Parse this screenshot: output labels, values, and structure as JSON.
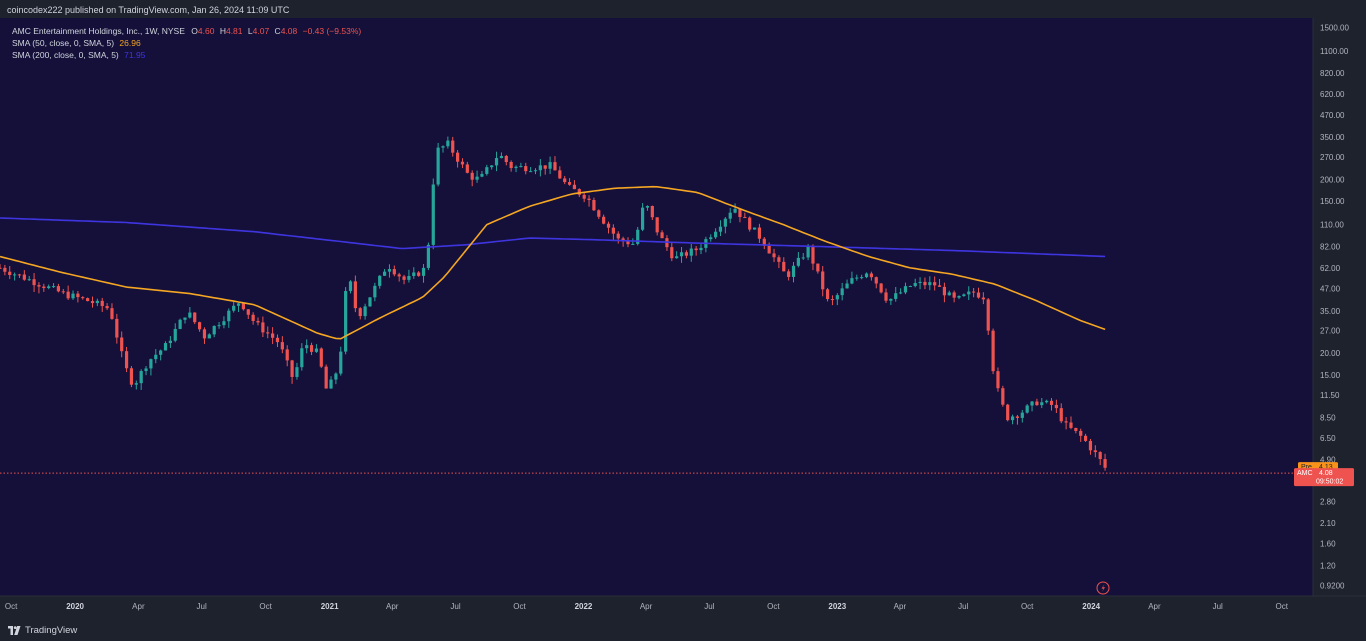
{
  "publisher": {
    "text": "coincodex222 published on TradingView.com, Jan 26, 2024 11:09 UTC"
  },
  "legend": {
    "symbol_title": "AMC Entertainment Holdings, Inc., 1W, NYSE",
    "o_label": "O",
    "o_value": "4.60",
    "h_label": "H",
    "h_value": "4.81",
    "l_label": "L",
    "l_value": "4.07",
    "c_label": "C",
    "c_value": "4.08",
    "change": "−0.43 (−9.53%)",
    "sma50_label": "SMA (50, close, 0, SMA, 5)",
    "sma50_value": "26.96",
    "sma200_label": "SMA (200, close, 0, SMA, 5)",
    "sma200_value": "71.95"
  },
  "footer": {
    "brand": "TradingView"
  },
  "colors": {
    "background": "#14103a",
    "axis_bg": "#1e222d",
    "up": "#26a69a",
    "down": "#ef5350",
    "sma50": "#f5a623",
    "sma200": "#3f35e0",
    "pre_badge": "#f7931a",
    "price_badge": "#ef5350"
  },
  "chart_data": {
    "type": "candlestick",
    "interval": "1W",
    "scale": "log",
    "ylim": [
      0.8,
      1700
    ],
    "x_range": [
      "2019-09-15",
      "2024-11-15"
    ],
    "y_ticks": [
      "1500.00",
      "1100.00",
      "820.00",
      "620.00",
      "470.00",
      "350.00",
      "270.00",
      "200.00",
      "150.00",
      "110.00",
      "82.00",
      "62.00",
      "47.00",
      "35.00",
      "27.00",
      "20.00",
      "15.00",
      "11.50",
      "8.50",
      "6.50",
      "4.90",
      "3.70",
      "2.80",
      "2.10",
      "1.60",
      "1.20",
      "0.9200"
    ],
    "x_ticks": [
      {
        "label": "Oct",
        "date": "2019-10-01"
      },
      {
        "label": "2020",
        "date": "2020-01-01"
      },
      {
        "label": "Apr",
        "date": "2020-04-01"
      },
      {
        "label": "Jul",
        "date": "2020-07-01"
      },
      {
        "label": "Oct",
        "date": "2020-10-01"
      },
      {
        "label": "2021",
        "date": "2021-01-01"
      },
      {
        "label": "Apr",
        "date": "2021-04-01"
      },
      {
        "label": "Jul",
        "date": "2021-07-01"
      },
      {
        "label": "Oct",
        "date": "2021-10-01"
      },
      {
        "label": "2022",
        "date": "2022-01-01"
      },
      {
        "label": "Apr",
        "date": "2022-04-01"
      },
      {
        "label": "Jul",
        "date": "2022-07-01"
      },
      {
        "label": "Oct",
        "date": "2022-10-01"
      },
      {
        "label": "2023",
        "date": "2023-01-01"
      },
      {
        "label": "Apr",
        "date": "2023-04-01"
      },
      {
        "label": "Jul",
        "date": "2023-07-01"
      },
      {
        "label": "Oct",
        "date": "2023-10-01"
      },
      {
        "label": "2024",
        "date": "2024-01-01"
      },
      {
        "label": "Apr",
        "date": "2024-04-01"
      },
      {
        "label": "Jul",
        "date": "2024-07-01"
      },
      {
        "label": "Oct",
        "date": "2024-10-01"
      }
    ],
    "price_anchors": [
      [
        "2019-09-15",
        62
      ],
      [
        "2019-11-01",
        52
      ],
      [
        "2019-12-15",
        44
      ],
      [
        "2020-01-20",
        40
      ],
      [
        "2020-02-20",
        36
      ],
      [
        "2020-03-12",
        17
      ],
      [
        "2020-03-25",
        13
      ],
      [
        "2020-04-15",
        18
      ],
      [
        "2020-05-10",
        22
      ],
      [
        "2020-06-10",
        35
      ],
      [
        "2020-07-05",
        25
      ],
      [
        "2020-08-05",
        33
      ],
      [
        "2020-08-25",
        40
      ],
      [
        "2020-09-15",
        30
      ],
      [
        "2020-10-20",
        23
      ],
      [
        "2020-11-10",
        14
      ],
      [
        "2020-11-25",
        23
      ],
      [
        "2020-12-15",
        20
      ],
      [
        "2020-12-28",
        12
      ],
      [
        "2021-01-15",
        17
      ],
      [
        "2021-01-27",
        60
      ],
      [
        "2021-02-10",
        32
      ],
      [
        "2021-03-10",
        50
      ],
      [
        "2021-03-25",
        65
      ],
      [
        "2021-04-20",
        52
      ],
      [
        "2021-05-20",
        62
      ],
      [
        "2021-05-28",
        148
      ],
      [
        "2021-06-02",
        290
      ],
      [
        "2021-06-20",
        320
      ],
      [
        "2021-07-20",
        210
      ],
      [
        "2021-08-05",
        200
      ],
      [
        "2021-09-01",
        280
      ],
      [
        "2021-09-20",
        235
      ],
      [
        "2021-10-20",
        235
      ],
      [
        "2021-11-15",
        240
      ],
      [
        "2021-12-10",
        180
      ],
      [
        "2022-01-05",
        160
      ],
      [
        "2022-01-27",
        120
      ],
      [
        "2022-02-20",
        90
      ],
      [
        "2022-03-15",
        85
      ],
      [
        "2022-03-30",
        150
      ],
      [
        "2022-04-20",
        95
      ],
      [
        "2022-05-12",
        70
      ],
      [
        "2022-06-15",
        80
      ],
      [
        "2022-07-15",
        110
      ],
      [
        "2022-08-05",
        140
      ],
      [
        "2022-08-22",
        115
      ],
      [
        "2022-09-15",
        90
      ],
      [
        "2022-10-20",
        55
      ],
      [
        "2022-11-20",
        80
      ],
      [
        "2022-12-20",
        38
      ],
      [
        "2023-01-20",
        52
      ],
      [
        "2023-02-15",
        60
      ],
      [
        "2023-03-15",
        40
      ],
      [
        "2023-04-20",
        50
      ],
      [
        "2023-05-20",
        50
      ],
      [
        "2023-06-20",
        40
      ],
      [
        "2023-07-15",
        45
      ],
      [
        "2023-08-01",
        42
      ],
      [
        "2023-08-15",
        14
      ],
      [
        "2023-09-01",
        8.5
      ],
      [
        "2023-09-20",
        9
      ],
      [
        "2023-10-15",
        10.5
      ],
      [
        "2023-11-08",
        10
      ],
      [
        "2023-11-25",
        7.7
      ],
      [
        "2023-12-20",
        6.5
      ],
      [
        "2024-01-10",
        5.1
      ],
      [
        "2024-01-26",
        4.08
      ]
    ],
    "sma50_anchors": [
      [
        "2019-09-15",
        72
      ],
      [
        "2019-12-15",
        58
      ],
      [
        "2020-03-15",
        48
      ],
      [
        "2020-06-15",
        44
      ],
      [
        "2020-09-15",
        38
      ],
      [
        "2020-12-15",
        26
      ],
      [
        "2021-01-15",
        24
      ],
      [
        "2021-03-15",
        32
      ],
      [
        "2021-05-15",
        42
      ],
      [
        "2021-06-15",
        55
      ],
      [
        "2021-08-15",
        110
      ],
      [
        "2021-10-15",
        140
      ],
      [
        "2021-12-15",
        165
      ],
      [
        "2022-02-15",
        178
      ],
      [
        "2022-04-15",
        182
      ],
      [
        "2022-06-15",
        168
      ],
      [
        "2022-08-15",
        135
      ],
      [
        "2022-10-15",
        110
      ],
      [
        "2022-12-15",
        88
      ],
      [
        "2023-02-15",
        72
      ],
      [
        "2023-04-15",
        62
      ],
      [
        "2023-06-15",
        57
      ],
      [
        "2023-08-15",
        50
      ],
      [
        "2023-10-15",
        40
      ],
      [
        "2023-12-15",
        31
      ],
      [
        "2024-01-26",
        26.96
      ]
    ],
    "sma200_anchors": [
      [
        "2019-09-15",
        120
      ],
      [
        "2020-03-15",
        113
      ],
      [
        "2020-09-15",
        100
      ],
      [
        "2021-01-15",
        88
      ],
      [
        "2021-04-15",
        80
      ],
      [
        "2021-07-15",
        84
      ],
      [
        "2021-10-15",
        92
      ],
      [
        "2022-01-15",
        90
      ],
      [
        "2022-06-15",
        86
      ],
      [
        "2022-12-15",
        82
      ],
      [
        "2023-06-15",
        78
      ],
      [
        "2024-01-26",
        71.95
      ]
    ],
    "last_close": 4.08,
    "pre_market": 4.13,
    "badges": {
      "pre_label": "Pre",
      "pre_value": "4.13",
      "ticker": "AMC",
      "last_value": "4.08",
      "countdown": "09:50:02"
    }
  }
}
